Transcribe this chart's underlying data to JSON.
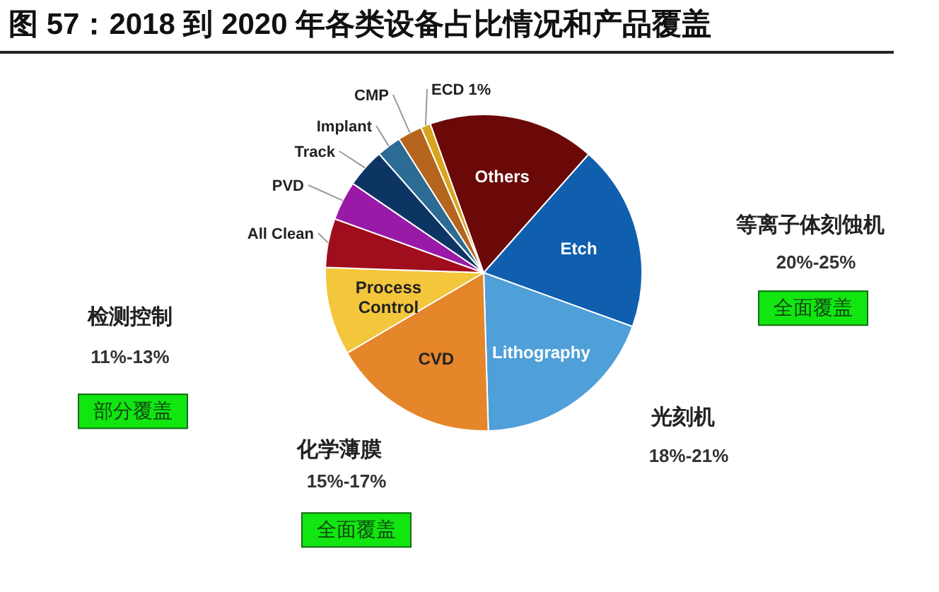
{
  "chart_data": {
    "type": "pie",
    "title": "图 57：2018 到 2020 年各类设备占比情况和产品覆盖",
    "categories": [
      "Etch",
      "Lithography",
      "CVD",
      "Process Control",
      "All Clean",
      "PVD",
      "Track",
      "Implant",
      "CMP",
      "ECD",
      "Others"
    ],
    "values": [
      19,
      19,
      17,
      9,
      5,
      4,
      4,
      2.5,
      2.5,
      1,
      17
    ],
    "value_labels": [
      null,
      null,
      null,
      null,
      null,
      null,
      null,
      null,
      null,
      "1%",
      null
    ],
    "colors": [
      "#0f5fae",
      "#4f9fd8",
      "#e5862a",
      "#f3c63b",
      "#a00d1c",
      "#9a1aa8",
      "#0d3563",
      "#2c6b93",
      "#b5651d",
      "#d9a521",
      "#6b0808"
    ],
    "annotations": [
      "等离子体刻蚀机",
      "20%-25%",
      "全面覆盖",
      "检测控制",
      "11%-13%",
      "部分覆盖",
      "光刻机",
      "18%-21%",
      "化学薄膜",
      "15%-17%",
      "全面覆盖"
    ]
  }
}
